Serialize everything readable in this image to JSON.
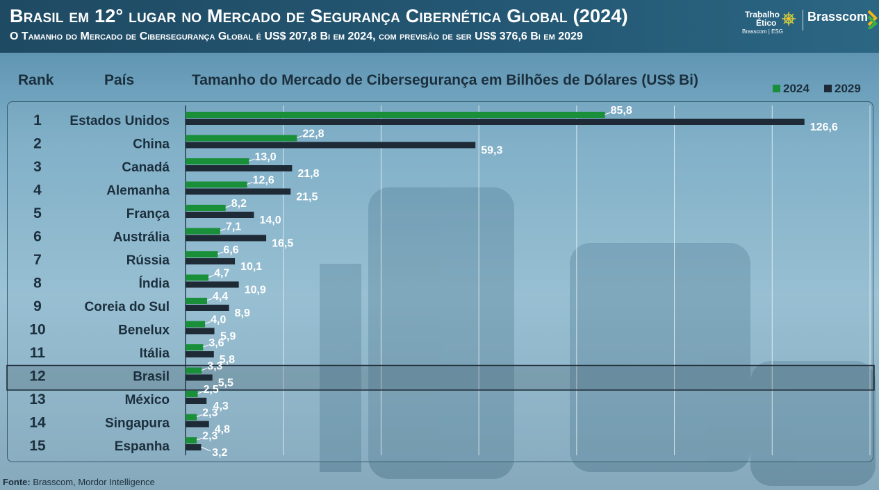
{
  "header": {
    "title": "Brasil em 12° lugar no Mercado de Segurança Cibernética Global (2024)",
    "subtitle": "O Tamanho do Mercado de Cibersegurança Global é US$ 207,8 Bi em 2024, com previsão de ser US$ 376,6 Bi em 2029",
    "logo_trabalho_line1": "Trabalho",
    "logo_trabalho_line2": "Ético",
    "logo_trabalho_line3": "Brasscom | ESG",
    "logo_brand": "Brasscom"
  },
  "columns": {
    "rank": "Rank",
    "country": "País",
    "chart_title": "Tamanho do Mercado de Cibersegurança em Bilhões de Dólares (US$ Bi)"
  },
  "colors": {
    "series_2024": "#1a8f3a",
    "series_2029": "#1e2b36",
    "highlight_border": "#1e2b36"
  },
  "footer": {
    "source_label": "Fonte:",
    "source_text": " Brasscom, Mordor Intelligence"
  },
  "chart_data": {
    "type": "bar",
    "orientation": "horizontal",
    "title": "Tamanho do Mercado de Cibersegurança em Bilhões de Dólares (US$ Bi)",
    "ranks": [
      "1",
      "2",
      "3",
      "4",
      "5",
      "6",
      "7",
      "8",
      "9",
      "10",
      "11",
      "12",
      "13",
      "14",
      "15"
    ],
    "categories": [
      "Estados Unidos",
      "China",
      "Canadá",
      "Alemanha",
      "França",
      "Austrália",
      "Rússia",
      "Índia",
      "Coreia do Sul",
      "Benelux",
      "Itália",
      "Brasil",
      "México",
      "Singapura",
      "Espanha"
    ],
    "series": [
      {
        "name": "2024",
        "values": [
          85.8,
          22.8,
          13.0,
          12.6,
          8.2,
          7.1,
          6.6,
          4.7,
          4.4,
          4.0,
          3.6,
          3.3,
          2.5,
          2.3,
          2.3
        ],
        "labels": [
          "85,8",
          "22,8",
          "13,0",
          "12,6",
          "8,2",
          "7,1",
          "6,6",
          "4,7",
          "4,4",
          "4,0",
          "3,6",
          "3,3",
          "2,5",
          "2,3",
          "2,3"
        ]
      },
      {
        "name": "2029",
        "values": [
          126.6,
          59.3,
          21.8,
          21.5,
          14.0,
          16.5,
          10.1,
          10.9,
          8.9,
          5.9,
          5.8,
          5.5,
          4.3,
          4.8,
          3.2
        ],
        "labels": [
          "126,6",
          "59,3",
          "21,8",
          "21,5",
          "14,0",
          "16,5",
          "10,1",
          "10,9",
          "8,9",
          "5,9",
          "5,8",
          "5,5",
          "4,3",
          "4,8",
          "3,2"
        ]
      }
    ],
    "xlim": [
      0,
      140
    ],
    "grid": true,
    "highlight_category": "Brasil",
    "legend_position": "top-right"
  }
}
